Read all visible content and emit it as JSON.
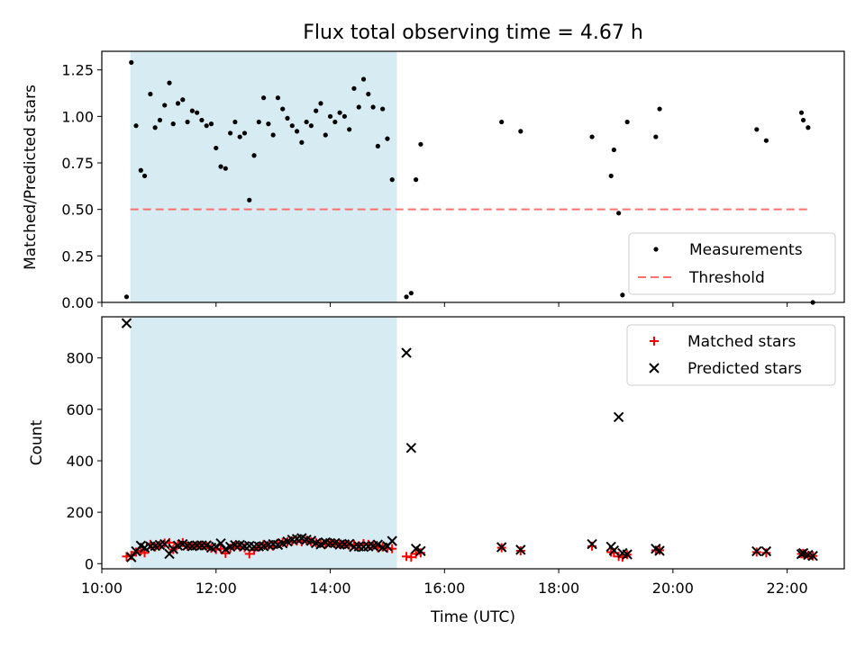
{
  "title": "Flux total observing time = 4.67 h",
  "xlabel": "Time (UTC)",
  "colors": {
    "span": "#add8e6",
    "measurement": "#000000",
    "threshold": "#ff7070",
    "matched": "#ff0000",
    "predicted": "#000000"
  },
  "chart_data": [
    {
      "type": "scatter",
      "panel": "top",
      "ylabel": "Matched/Predicted stars",
      "xlim": [
        "10:00",
        "23:00"
      ],
      "ylim": [
        0,
        1.35
      ],
      "yticks": [
        0.0,
        0.25,
        0.5,
        0.75,
        1.0,
        1.25
      ],
      "ytick_labels": [
        "0.00",
        "0.25",
        "0.50",
        "0.75",
        "1.00",
        "1.25"
      ],
      "shaded_span": [
        "10:30",
        "15:10"
      ],
      "legend_position": "lower right",
      "threshold": {
        "name": "Threshold",
        "y": 0.5,
        "x_range": [
          "10:30",
          "22:25"
        ],
        "style": "dashed"
      },
      "series": [
        {
          "name": "Measurements",
          "marker": "dot",
          "points": [
            [
              "10:26",
              0.03
            ],
            [
              "10:31",
              1.29
            ],
            [
              "10:36",
              0.95
            ],
            [
              "10:41",
              0.71
            ],
            [
              "10:45",
              0.68
            ],
            [
              "10:51",
              1.12
            ],
            [
              "10:56",
              0.94
            ],
            [
              "11:01",
              0.98
            ],
            [
              "11:06",
              1.06
            ],
            [
              "11:11",
              1.18
            ],
            [
              "11:15",
              0.96
            ],
            [
              "11:20",
              1.07
            ],
            [
              "11:25",
              1.09
            ],
            [
              "11:30",
              0.97
            ],
            [
              "11:35",
              1.03
            ],
            [
              "11:40",
              1.02
            ],
            [
              "11:45",
              0.98
            ],
            [
              "11:50",
              0.95
            ],
            [
              "11:55",
              0.96
            ],
            [
              "12:00",
              0.83
            ],
            [
              "12:05",
              0.73
            ],
            [
              "12:10",
              0.72
            ],
            [
              "12:15",
              0.91
            ],
            [
              "12:20",
              0.97
            ],
            [
              "12:25",
              0.89
            ],
            [
              "12:30",
              0.91
            ],
            [
              "12:35",
              0.55
            ],
            [
              "12:40",
              0.79
            ],
            [
              "12:45",
              0.97
            ],
            [
              "12:50",
              1.1
            ],
            [
              "12:55",
              0.96
            ],
            [
              "13:00",
              0.9
            ],
            [
              "13:05",
              1.1
            ],
            [
              "13:10",
              1.04
            ],
            [
              "13:15",
              0.99
            ],
            [
              "13:20",
              0.95
            ],
            [
              "13:25",
              0.92
            ],
            [
              "13:30",
              0.86
            ],
            [
              "13:35",
              0.97
            ],
            [
              "13:40",
              0.95
            ],
            [
              "13:45",
              1.03
            ],
            [
              "13:50",
              1.07
            ],
            [
              "13:55",
              0.9
            ],
            [
              "14:00",
              1.0
            ],
            [
              "14:05",
              0.97
            ],
            [
              "14:10",
              1.02
            ],
            [
              "14:15",
              1.0
            ],
            [
              "14:20",
              0.93
            ],
            [
              "14:25",
              1.15
            ],
            [
              "14:30",
              1.05
            ],
            [
              "14:35",
              1.2
            ],
            [
              "14:40",
              1.12
            ],
            [
              "14:45",
              1.05
            ],
            [
              "14:50",
              0.84
            ],
            [
              "14:55",
              1.04
            ],
            [
              "15:00",
              0.88
            ],
            [
              "15:05",
              0.66
            ],
            [
              "15:20",
              0.03
            ],
            [
              "15:25",
              0.05
            ],
            [
              "15:30",
              0.66
            ],
            [
              "15:35",
              0.85
            ],
            [
              "17:00",
              0.97
            ],
            [
              "17:20",
              0.92
            ],
            [
              "18:35",
              0.89
            ],
            [
              "18:55",
              0.68
            ],
            [
              "18:58",
              0.82
            ],
            [
              "19:03",
              0.48
            ],
            [
              "19:07",
              0.04
            ],
            [
              "19:12",
              0.97
            ],
            [
              "19:42",
              0.89
            ],
            [
              "19:46",
              1.04
            ],
            [
              "21:28",
              0.93
            ],
            [
              "21:38",
              0.87
            ],
            [
              "22:15",
              1.02
            ],
            [
              "22:17",
              0.98
            ],
            [
              "22:22",
              0.94
            ],
            [
              "22:27",
              0.0
            ]
          ]
        }
      ]
    },
    {
      "type": "scatter",
      "panel": "bottom",
      "ylabel": "Count",
      "xlim": [
        "10:00",
        "23:00"
      ],
      "ylim": [
        -20,
        960
      ],
      "yticks": [
        0,
        200,
        400,
        600,
        800
      ],
      "ytick_labels": [
        "0",
        "200",
        "400",
        "600",
        "800"
      ],
      "xticks": [
        "10:00",
        "12:00",
        "14:00",
        "16:00",
        "18:00",
        "20:00",
        "22:00"
      ],
      "shaded_span": [
        "10:30",
        "15:10"
      ],
      "legend_position": "upper right",
      "series": [
        {
          "name": "Matched stars",
          "marker": "plus",
          "points": [
            [
              "10:26",
              28
            ],
            [
              "10:31",
              32
            ],
            [
              "10:36",
              45
            ],
            [
              "10:41",
              50
            ],
            [
              "10:45",
              42
            ],
            [
              "10:51",
              75
            ],
            [
              "10:56",
              65
            ],
            [
              "11:01",
              70
            ],
            [
              "11:06",
              80
            ],
            [
              "11:11",
              82
            ],
            [
              "11:15",
              55
            ],
            [
              "11:20",
              75
            ],
            [
              "11:25",
              82
            ],
            [
              "11:30",
              68
            ],
            [
              "11:35",
              70
            ],
            [
              "11:40",
              72
            ],
            [
              "11:45",
              70
            ],
            [
              "11:50",
              68
            ],
            [
              "11:55",
              60
            ],
            [
              "12:00",
              55
            ],
            [
              "12:05",
              58
            ],
            [
              "12:10",
              40
            ],
            [
              "12:15",
              60
            ],
            [
              "12:20",
              70
            ],
            [
              "12:25",
              65
            ],
            [
              "12:30",
              62
            ],
            [
              "12:35",
              38
            ],
            [
              "12:40",
              52
            ],
            [
              "12:45",
              65
            ],
            [
              "12:50",
              75
            ],
            [
              "12:55",
              70
            ],
            [
              "13:00",
              68
            ],
            [
              "13:05",
              80
            ],
            [
              "13:10",
              82
            ],
            [
              "13:15",
              85
            ],
            [
              "13:20",
              88
            ],
            [
              "13:25",
              88
            ],
            [
              "13:30",
              85
            ],
            [
              "13:35",
              90
            ],
            [
              "13:40",
              85
            ],
            [
              "13:45",
              82
            ],
            [
              "13:50",
              80
            ],
            [
              "13:55",
              75
            ],
            [
              "14:00",
              80
            ],
            [
              "14:05",
              78
            ],
            [
              "14:10",
              75
            ],
            [
              "14:15",
              75
            ],
            [
              "14:20",
              72
            ],
            [
              "14:25",
              75
            ],
            [
              "14:30",
              70
            ],
            [
              "14:35",
              78
            ],
            [
              "14:40",
              75
            ],
            [
              "14:45",
              72
            ],
            [
              "14:50",
              62
            ],
            [
              "14:55",
              65
            ],
            [
              "15:00",
              60
            ],
            [
              "15:05",
              58
            ],
            [
              "15:20",
              28
            ],
            [
              "15:25",
              25
            ],
            [
              "15:30",
              38
            ],
            [
              "15:35",
              42
            ],
            [
              "17:00",
              62
            ],
            [
              "17:20",
              50
            ],
            [
              "18:35",
              68
            ],
            [
              "18:55",
              45
            ],
            [
              "18:58",
              42
            ],
            [
              "19:03",
              28
            ],
            [
              "19:07",
              25
            ],
            [
              "19:12",
              35
            ],
            [
              "19:42",
              52
            ],
            [
              "19:46",
              52
            ],
            [
              "21:28",
              45
            ],
            [
              "21:38",
              42
            ],
            [
              "22:15",
              38
            ],
            [
              "22:17",
              40
            ],
            [
              "22:22",
              32
            ],
            [
              "22:27",
              30
            ]
          ]
        },
        {
          "name": "Predicted stars",
          "marker": "x",
          "points": [
            [
              "10:26",
              935
            ],
            [
              "10:31",
              25
            ],
            [
              "10:36",
              48
            ],
            [
              "10:41",
              70
            ],
            [
              "10:45",
              62
            ],
            [
              "10:51",
              67
            ],
            [
              "10:56",
              69
            ],
            [
              "11:01",
              73
            ],
            [
              "11:06",
              76
            ],
            [
              "11:11",
              38
            ],
            [
              "11:15",
              57
            ],
            [
              "11:20",
              70
            ],
            [
              "11:25",
              76
            ],
            [
              "11:30",
              70
            ],
            [
              "11:35",
              68
            ],
            [
              "11:40",
              71
            ],
            [
              "11:45",
              71
            ],
            [
              "11:50",
              71
            ],
            [
              "11:55",
              62
            ],
            [
              "12:00",
              66
            ],
            [
              "12:05",
              79
            ],
            [
              "12:10",
              56
            ],
            [
              "12:15",
              66
            ],
            [
              "12:20",
              72
            ],
            [
              "12:25",
              73
            ],
            [
              "12:30",
              68
            ],
            [
              "12:35",
              69
            ],
            [
              "12:40",
              66
            ],
            [
              "12:45",
              67
            ],
            [
              "12:50",
              68
            ],
            [
              "12:55",
              73
            ],
            [
              "13:00",
              76
            ],
            [
              "13:05",
              73
            ],
            [
              "13:10",
              79
            ],
            [
              "13:15",
              86
            ],
            [
              "13:20",
              93
            ],
            [
              "13:25",
              96
            ],
            [
              "13:30",
              99
            ],
            [
              "13:35",
              93
            ],
            [
              "13:40",
              89
            ],
            [
              "13:45",
              80
            ],
            [
              "13:50",
              75
            ],
            [
              "13:55",
              83
            ],
            [
              "14:00",
              80
            ],
            [
              "14:05",
              80
            ],
            [
              "14:10",
              74
            ],
            [
              "14:15",
              75
            ],
            [
              "14:20",
              77
            ],
            [
              "14:25",
              65
            ],
            [
              "14:30",
              67
            ],
            [
              "14:35",
              65
            ],
            [
              "14:40",
              67
            ],
            [
              "14:45",
              69
            ],
            [
              "14:50",
              74
            ],
            [
              "14:55",
              63
            ],
            [
              "15:00",
              68
            ],
            [
              "15:05",
              88
            ],
            [
              "15:20",
              820
            ],
            [
              "15:25",
              450
            ],
            [
              "15:30",
              58
            ],
            [
              "15:35",
              49
            ],
            [
              "17:00",
              64
            ],
            [
              "17:20",
              54
            ],
            [
              "18:35",
              76
            ],
            [
              "18:55",
              66
            ],
            [
              "18:58",
              51
            ],
            [
              "19:03",
              570
            ],
            [
              "19:07",
              41
            ],
            [
              "19:12",
              36
            ],
            [
              "19:42",
              58
            ],
            [
              "19:46",
              50
            ],
            [
              "21:28",
              48
            ],
            [
              "21:38",
              48
            ],
            [
              "22:15",
              37
            ],
            [
              "22:17",
              41
            ],
            [
              "22:22",
              34
            ],
            [
              "22:27",
              30
            ]
          ]
        }
      ]
    }
  ]
}
